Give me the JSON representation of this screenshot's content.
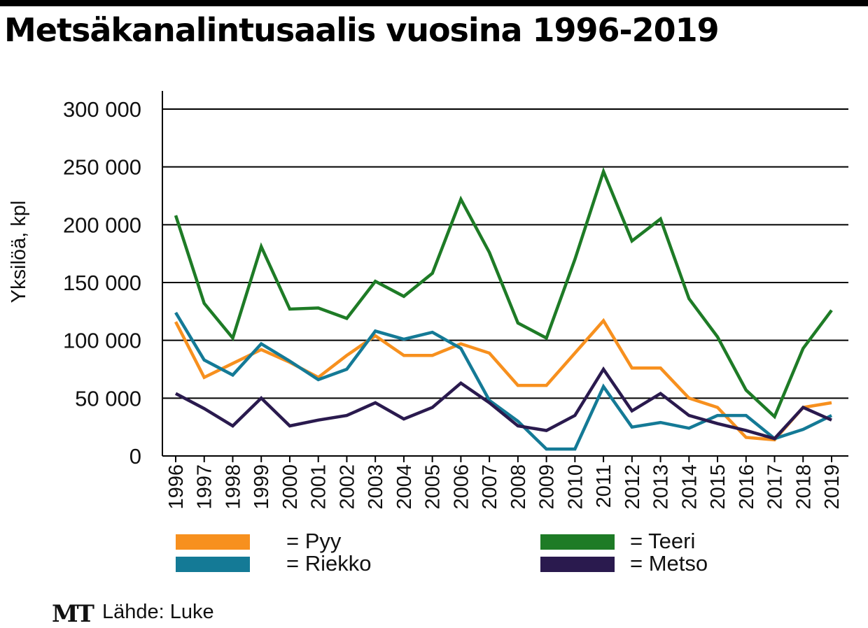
{
  "chart_data": {
    "type": "line",
    "title": "Metsäkanalintusaalis vuosina 1996-2019",
    "ylabel": "Yksilöä, kpl",
    "xlabel": "",
    "ylim": [
      0,
      300000
    ],
    "yticks": [
      0,
      50000,
      100000,
      150000,
      200000,
      250000,
      300000
    ],
    "ytick_labels": [
      "0",
      "50 000",
      "100 000",
      "150 000",
      "200 000",
      "250 000",
      "300 000"
    ],
    "grid": "horizontal",
    "categories": [
      "1996",
      "1997",
      "1998",
      "1999",
      "2000",
      "2001",
      "2002",
      "2003",
      "2004",
      "2005",
      "2006",
      "2007",
      "2008",
      "2009",
      "2010",
      "2011",
      "2012",
      "2013",
      "2014",
      "2015",
      "2016",
      "2017",
      "2018",
      "2019"
    ],
    "series": [
      {
        "name": "Pyy",
        "color": "#f7901e",
        "values": [
          116000,
          68000,
          80000,
          92000,
          81000,
          68000,
          87000,
          104000,
          87000,
          87000,
          97000,
          89000,
          61000,
          61000,
          89000,
          117000,
          76000,
          76000,
          50000,
          42000,
          16000,
          14000,
          42000,
          46000
        ]
      },
      {
        "name": "Riekko",
        "color": "#147a96",
        "values": [
          124000,
          83000,
          70000,
          97000,
          82000,
          66000,
          75000,
          108000,
          101000,
          107000,
          93000,
          48000,
          30000,
          6000,
          6000,
          60000,
          25000,
          29000,
          24000,
          35000,
          35000,
          15000,
          23000,
          35000
        ]
      },
      {
        "name": "Teeri",
        "color": "#1e7b26",
        "values": [
          208000,
          132000,
          102000,
          181000,
          127000,
          128000,
          119000,
          151000,
          138000,
          158000,
          222000,
          176000,
          115000,
          102000,
          170000,
          246000,
          186000,
          205000,
          136000,
          103000,
          57000,
          34000,
          93000,
          126000
        ]
      },
      {
        "name": "Metso",
        "color": "#2a1a4e",
        "values": [
          54000,
          41000,
          26000,
          50000,
          26000,
          31000,
          35000,
          46000,
          32000,
          42000,
          63000,
          46000,
          26000,
          22000,
          35000,
          75000,
          39000,
          54000,
          35000,
          28000,
          22000,
          15000,
          42000,
          31000
        ]
      }
    ],
    "legend": {
      "position": "bottom",
      "prefix": "="
    },
    "source": "Lähde: Luke",
    "logo_text": "MT"
  }
}
